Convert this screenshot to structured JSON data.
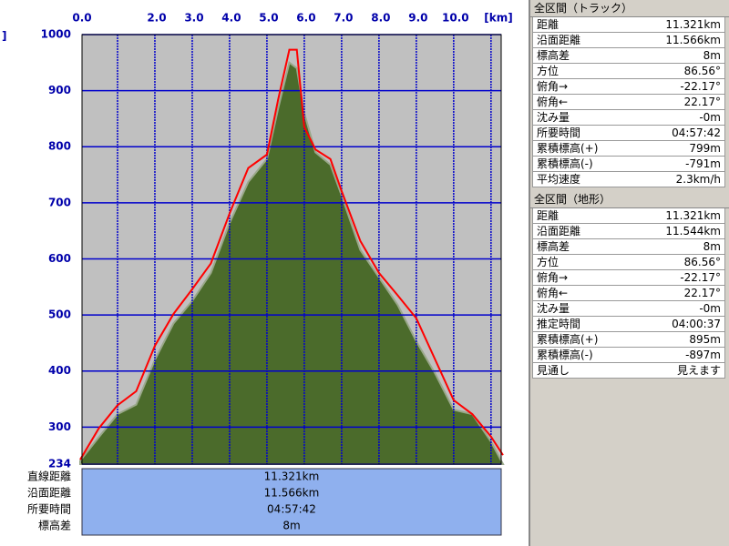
{
  "chart_data": {
    "type": "area",
    "x_unit_label": "[km]",
    "y_unit_label": "]",
    "x": [
      0,
      0.5,
      1.0,
      1.5,
      2.0,
      2.5,
      3.0,
      3.5,
      4.0,
      4.5,
      5.0,
      5.3,
      5.6,
      5.8,
      6.0,
      6.3,
      6.7,
      7.0,
      7.5,
      8.0,
      8.5,
      9.0,
      9.5,
      10.0,
      10.5,
      11.0,
      11.321
    ],
    "series": [
      {
        "kind": "area",
        "color": "#4b6b2b",
        "values": [
          240,
          282,
          323,
          340,
          420,
          485,
          525,
          575,
          664,
          737,
          778,
          868,
          950,
          940,
          860,
          790,
          768,
          713,
          616,
          567,
          518,
          453,
          396,
          331,
          323,
          274,
          234
        ]
      },
      {
        "kind": "line",
        "color": "#ff0000",
        "values": [
          242,
          298,
          339,
          364,
          445,
          502,
          546,
          592,
          681,
          762,
          786,
          884,
          973,
          973,
          835,
          795,
          778,
          721,
          632,
          575,
          535,
          494,
          421,
          348,
          323,
          283,
          250
        ]
      }
    ],
    "xlim": [
      0,
      11.321
    ],
    "ylim": [
      234,
      1000
    ],
    "xticks": [
      {
        "value": 0,
        "label": "0.0"
      },
      {
        "value": 1,
        "label": null
      },
      {
        "value": 2,
        "label": "2.0"
      },
      {
        "value": 3,
        "label": "3.0"
      },
      {
        "value": 4,
        "label": "4.0"
      },
      {
        "value": 5,
        "label": "5.0"
      },
      {
        "value": 6,
        "label": "6.0"
      },
      {
        "value": 7,
        "label": "7.0"
      },
      {
        "value": 8,
        "label": "8.0"
      },
      {
        "value": 9,
        "label": "9.0"
      },
      {
        "value": 10,
        "label": "10.0"
      },
      {
        "value": 11,
        "label": null
      }
    ],
    "yticks": [
      234,
      300,
      400,
      500,
      600,
      700,
      800,
      900,
      1000
    ],
    "grid": true,
    "grid_color": "#0000cc"
  },
  "summary": {
    "rows": [
      [
        "直線距離",
        "11.321km"
      ],
      [
        "沿面距離",
        "11.566km"
      ],
      [
        "所要時間",
        "04:57:42"
      ],
      [
        "標高差",
        "8m"
      ]
    ]
  },
  "track_panel": {
    "title": "全区間（トラック）",
    "rows": [
      [
        "距離",
        "11.321km"
      ],
      [
        "沿面距離",
        "11.566km"
      ],
      [
        "標高差",
        "8m"
      ],
      [
        "方位",
        "86.56°"
      ],
      [
        "俯角→",
        "-22.17°"
      ],
      [
        "俯角←",
        "22.17°"
      ],
      [
        "沈み量",
        "-0m"
      ],
      [
        "所要時間",
        "04:57:42"
      ],
      [
        "累積標高(+)",
        "799m"
      ],
      [
        "累積標高(-)",
        "-791m"
      ],
      [
        "平均速度",
        "2.3km/h"
      ]
    ]
  },
  "terrain_panel": {
    "title": "全区間（地形）",
    "rows": [
      [
        "距離",
        "11.321km"
      ],
      [
        "沿面距離",
        "11.544km"
      ],
      [
        "標高差",
        "8m"
      ],
      [
        "方位",
        "86.56°"
      ],
      [
        "俯角→",
        "-22.17°"
      ],
      [
        "俯角←",
        "22.17°"
      ],
      [
        "沈み量",
        "-0m"
      ],
      [
        "推定時間",
        "04:00:37"
      ],
      [
        "累積標高(+)",
        "895m"
      ],
      [
        "累積標高(-)",
        "-897m"
      ],
      [
        "見通し",
        "見えます"
      ]
    ]
  }
}
